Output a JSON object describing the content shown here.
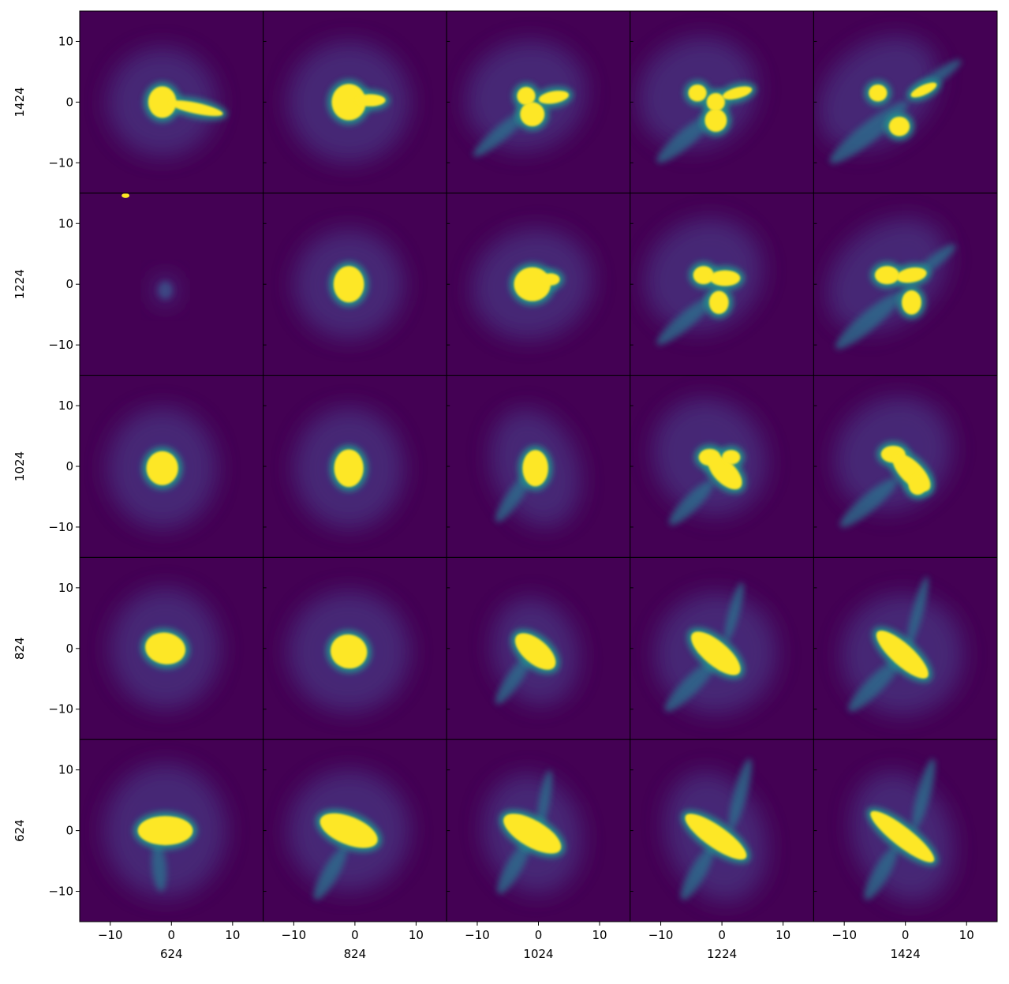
{
  "chart_data": {
    "type": "heatmap",
    "layout": "5x5 grid of image panels",
    "colormap": "viridis",
    "colors": {
      "background": "#440154",
      "halo": "#472d7b",
      "edge": "#21918c",
      "core": "#fde725"
    },
    "xlim": [
      -15,
      15
    ],
    "ylim": [
      -15,
      15
    ],
    "xticks": [
      -10,
      0,
      10
    ],
    "yticks": [
      -10,
      0,
      10
    ],
    "xtick_labels": [
      "−10",
      "0",
      "10"
    ],
    "ytick_labels": [
      "−10",
      "0",
      "10"
    ],
    "column_labels": [
      "624",
      "824",
      "1024",
      "1224",
      "1424"
    ],
    "row_labels": [
      "1424",
      "1224",
      "1024",
      "824",
      "624"
    ],
    "panels": [
      [
        {
          "halo": [
            9,
            9,
            0
          ],
          "blobs": [
            [
              -1.5,
              0,
              2.3,
              2.6,
              0
            ],
            [
              4,
              -1,
              4.5,
              0.9,
              -12
            ]
          ]
        },
        {
          "halo": [
            10,
            10,
            0
          ],
          "blobs": [
            [
              -1,
              0,
              2.8,
              3,
              0
            ],
            [
              2.5,
              0.3,
              2.5,
              1,
              0
            ]
          ]
        },
        {
          "halo": [
            10,
            9,
            20
          ],
          "blobs": [
            [
              -2,
              1,
              1.5,
              1.5,
              0
            ],
            [
              -1,
              -2,
              2,
              2,
              0
            ],
            [
              2.5,
              0.8,
              2.5,
              1,
              10
            ]
          ],
          "streaks": [
            [
              -6,
              -5,
              6,
              1.2,
              40
            ]
          ]
        },
        {
          "halo": [
            10,
            9,
            30
          ],
          "blobs": [
            [
              -4,
              1.5,
              1.5,
              1.4,
              0
            ],
            [
              -1,
              -3,
              1.8,
              1.9,
              0
            ],
            [
              2.5,
              1.5,
              2.5,
              0.9,
              15
            ],
            [
              -1,
              0,
              1.5,
              1.5,
              0
            ]
          ],
          "streaks": [
            [
              -6,
              -6,
              6,
              1.4,
              40
            ]
          ]
        },
        {
          "halo": [
            11,
            8,
            40
          ],
          "blobs": [
            [
              -4.5,
              1.5,
              1.5,
              1.4,
              0
            ],
            [
              -1,
              -4,
              1.7,
              1.6,
              0
            ],
            [
              3,
              2,
              2.3,
              0.8,
              25
            ]
          ],
          "streaks": [
            [
              -6,
              -5,
              8,
              1.6,
              38
            ],
            [
              5,
              4,
              5,
              1,
              35
            ]
          ]
        }
      ],
      [
        {
          "halo": [
            2,
            2.5,
            0
          ],
          "dim": true,
          "blobs": [],
          "spot": [
            -7.5,
            14.6
          ]
        },
        {
          "halo": [
            9,
            9,
            0
          ],
          "blobs": [
            [
              -1,
              0,
              2.5,
              3,
              0
            ]
          ]
        },
        {
          "halo": [
            10,
            9,
            20
          ],
          "blobs": [
            [
              -1,
              0,
              3,
              2.8,
              0
            ],
            [
              2,
              0.8,
              1.5,
              1,
              0
            ]
          ]
        },
        {
          "halo": [
            10,
            9,
            35
          ],
          "blobs": [
            [
              -3,
              1.5,
              1.7,
              1.5,
              0
            ],
            [
              0.5,
              1,
              2.5,
              1.3,
              0
            ],
            [
              -0.5,
              -3,
              1.6,
              1.9,
              0
            ]
          ],
          "streaks": [
            [
              -6,
              -6,
              6,
              1.3,
              40
            ]
          ]
        },
        {
          "halo": [
            11,
            8,
            40
          ],
          "blobs": [
            [
              -3,
              1.5,
              2,
              1.5,
              0
            ],
            [
              1,
              1.5,
              2.5,
              1.2,
              10
            ],
            [
              1,
              -3,
              1.6,
              2,
              0
            ]
          ],
          "streaks": [
            [
              -6,
              -6,
              7,
              1.5,
              40
            ],
            [
              5,
              4,
              4,
              1,
              38
            ]
          ]
        }
      ],
      [
        {
          "halo": [
            9,
            10,
            0
          ],
          "blobs": [
            [
              -1.5,
              -0.3,
              2.6,
              2.8,
              0
            ]
          ]
        },
        {
          "halo": [
            9,
            10,
            0
          ],
          "blobs": [
            [
              -1,
              -0.3,
              2.4,
              3.1,
              0
            ]
          ]
        },
        {
          "halo": [
            7,
            10,
            20
          ],
          "blobs": [
            [
              -0.5,
              -0.3,
              2.1,
              3,
              0
            ]
          ],
          "streaks": [
            [
              -4,
              -5,
              5,
              1.2,
              55
            ]
          ]
        },
        {
          "halo": [
            9,
            10,
            35
          ],
          "blobs": [
            [
              -2,
              1.5,
              1.8,
              1.4,
              0
            ],
            [
              0.5,
              -1,
              3.5,
              1.8,
              -45
            ],
            [
              1.5,
              1.5,
              1.5,
              1.2,
              0
            ]
          ],
          "streaks": [
            [
              -5,
              -6,
              5,
              1.3,
              45
            ]
          ]
        },
        {
          "halo": [
            10,
            9,
            40
          ],
          "blobs": [
            [
              -2,
              2,
              2,
              1.4,
              0
            ],
            [
              1,
              -1,
              4,
              1.8,
              -45
            ],
            [
              2,
              -3,
              1.5,
              1.7,
              0
            ]
          ],
          "streaks": [
            [
              -6,
              -6,
              6,
              1.4,
              40
            ]
          ]
        }
      ],
      [
        {
          "halo": [
            9,
            10,
            0
          ],
          "blobs": [
            [
              -1,
              0,
              3.3,
              2.6,
              -10
            ]
          ]
        },
        {
          "halo": [
            10,
            10,
            0
          ],
          "blobs": [
            [
              -1,
              -0.5,
              3,
              2.8,
              -15
            ]
          ]
        },
        {
          "halo": [
            7,
            9,
            15
          ],
          "blobs": [
            [
              -0.5,
              -0.5,
              4,
              2,
              -40
            ]
          ],
          "streaks": [
            [
              -4,
              -5,
              5,
              1.2,
              55
            ]
          ]
        },
        {
          "halo": [
            10,
            10,
            30
          ],
          "blobs": [
            [
              -1,
              -0.8,
              5,
              2,
              -40
            ]
          ],
          "streaks": [
            [
              -5,
              -6,
              6,
              1.4,
              45
            ],
            [
              2,
              6,
              5,
              0.9,
              75
            ]
          ]
        },
        {
          "halo": [
            10,
            10,
            30
          ],
          "blobs": [
            [
              -0.5,
              -1,
              5.5,
              1.8,
              -42
            ]
          ],
          "streaks": [
            [
              -5,
              -6,
              6,
              1.4,
              45
            ],
            [
              2,
              6,
              6,
              0.9,
              75
            ]
          ]
        }
      ],
      [
        {
          "halo": [
            10,
            11,
            0
          ],
          "blobs": [
            [
              -1,
              0,
              4.5,
              2.4,
              0
            ]
          ],
          "streaks": [
            [
              -2,
              -6,
              4,
              1.2,
              95
            ]
          ]
        },
        {
          "halo": [
            10,
            10,
            10
          ],
          "blobs": [
            [
              -1,
              0,
              5,
              2.3,
              -22
            ]
          ],
          "streaks": [
            [
              -4,
              -7,
              5,
              1.3,
              60
            ]
          ]
        },
        {
          "halo": [
            8,
            10,
            15
          ],
          "blobs": [
            [
              -1,
              -0.5,
              5.3,
              2.2,
              -30
            ]
          ],
          "streaks": [
            [
              -4,
              -6,
              5,
              1.3,
              60
            ],
            [
              1,
              5,
              5,
              0.9,
              80
            ]
          ]
        },
        {
          "halo": [
            8,
            11,
            20
          ],
          "blobs": [
            [
              -1,
              -1,
              6,
              1.8,
              -35
            ]
          ],
          "streaks": [
            [
              -4,
              -7,
              5,
              1.3,
              60
            ],
            [
              3,
              6,
              6,
              1.1,
              75
            ]
          ]
        },
        {
          "halo": [
            8,
            11,
            20
          ],
          "blobs": [
            [
              -0.5,
              -1,
              6.5,
              1.6,
              -38
            ]
          ],
          "streaks": [
            [
              -4,
              -7,
              5,
              1.3,
              60
            ],
            [
              3,
              6,
              6,
              1.1,
              75
            ]
          ]
        }
      ]
    ]
  }
}
